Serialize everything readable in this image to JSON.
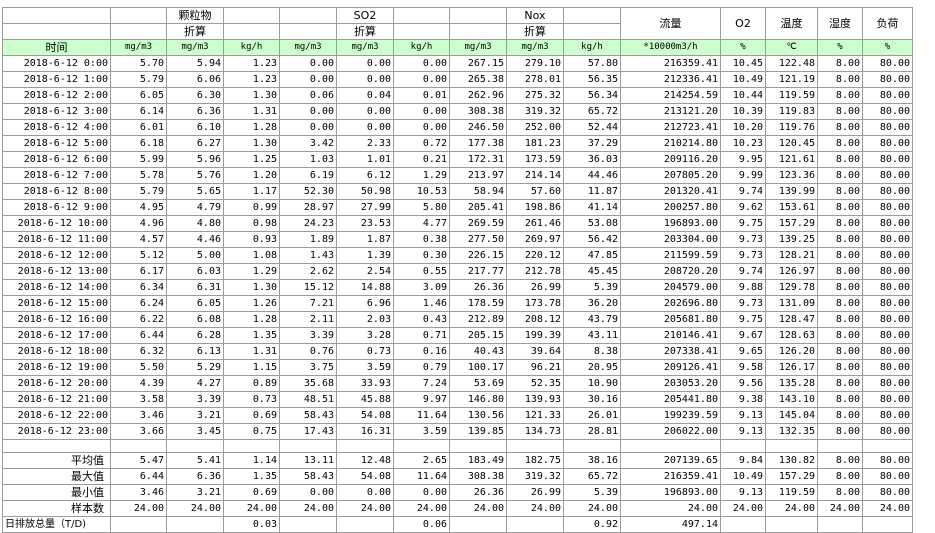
{
  "header": {
    "particle": "颗粒物",
    "so2": "SO2",
    "nox": "Nox",
    "converted": "折算",
    "flow": "流量",
    "o2": "O2",
    "temp": "温度",
    "humidity": "湿度",
    "load": "负荷",
    "time": "时间"
  },
  "units": [
    "mg/m3",
    "mg/m3",
    "kg/h",
    "mg/m3",
    "mg/m3",
    "kg/h",
    "mg/m3",
    "mg/m3",
    "kg/h",
    "*10000m3/h",
    "%",
    "℃",
    "%",
    "%"
  ],
  "rows": [
    [
      "2018-6-12 0:00",
      "5.70",
      "5.94",
      "1.23",
      "0.00",
      "0.00",
      "0.00",
      "267.15",
      "279.10",
      "57.80",
      "216359.41",
      "10.45",
      "122.48",
      "8.00",
      "80.00"
    ],
    [
      "2018-6-12 1:00",
      "5.79",
      "6.06",
      "1.23",
      "0.00",
      "0.00",
      "0.00",
      "265.38",
      "278.01",
      "56.35",
      "212336.41",
      "10.49",
      "121.19",
      "8.00",
      "80.00"
    ],
    [
      "2018-6-12 2:00",
      "6.05",
      "6.30",
      "1.30",
      "0.06",
      "0.04",
      "0.01",
      "262.96",
      "275.32",
      "56.34",
      "214254.59",
      "10.44",
      "119.59",
      "8.00",
      "80.00"
    ],
    [
      "2018-6-12 3:00",
      "6.14",
      "6.36",
      "1.31",
      "0.00",
      "0.00",
      "0.00",
      "308.38",
      "319.32",
      "65.72",
      "213121.20",
      "10.39",
      "119.83",
      "8.00",
      "80.00"
    ],
    [
      "2018-6-12 4:00",
      "6.01",
      "6.10",
      "1.28",
      "0.00",
      "0.00",
      "0.00",
      "246.50",
      "252.00",
      "52.44",
      "212723.41",
      "10.20",
      "119.76",
      "8.00",
      "80.00"
    ],
    [
      "2018-6-12 5:00",
      "6.18",
      "6.27",
      "1.30",
      "3.42",
      "2.33",
      "0.72",
      "177.38",
      "181.23",
      "37.29",
      "210214.80",
      "10.23",
      "120.45",
      "8.00",
      "80.00"
    ],
    [
      "2018-6-12 6:00",
      "5.99",
      "5.96",
      "1.25",
      "1.03",
      "1.01",
      "0.21",
      "172.31",
      "173.59",
      "36.03",
      "209116.20",
      "9.95",
      "121.61",
      "8.00",
      "80.00"
    ],
    [
      "2018-6-12 7:00",
      "5.78",
      "5.76",
      "1.20",
      "6.19",
      "6.12",
      "1.29",
      "213.97",
      "214.14",
      "44.46",
      "207805.20",
      "9.99",
      "123.36",
      "8.00",
      "80.00"
    ],
    [
      "2018-6-12 8:00",
      "5.79",
      "5.65",
      "1.17",
      "52.30",
      "50.98",
      "10.53",
      "58.94",
      "57.60",
      "11.87",
      "201320.41",
      "9.74",
      "139.99",
      "8.00",
      "80.00"
    ],
    [
      "2018-6-12 9:00",
      "4.95",
      "4.79",
      "0.99",
      "28.97",
      "27.99",
      "5.80",
      "205.41",
      "198.86",
      "41.14",
      "200257.80",
      "9.62",
      "153.61",
      "8.00",
      "80.00"
    ],
    [
      "2018-6-12 10:00",
      "4.96",
      "4.80",
      "0.98",
      "24.23",
      "23.53",
      "4.77",
      "269.59",
      "261.46",
      "53.08",
      "196893.00",
      "9.75",
      "157.29",
      "8.00",
      "80.00"
    ],
    [
      "2018-6-12 11:00",
      "4.57",
      "4.46",
      "0.93",
      "1.89",
      "1.87",
      "0.38",
      "277.50",
      "269.97",
      "56.42",
      "203304.00",
      "9.73",
      "139.25",
      "8.00",
      "80.00"
    ],
    [
      "2018-6-12 12:00",
      "5.12",
      "5.00",
      "1.08",
      "1.43",
      "1.39",
      "0.30",
      "226.15",
      "220.12",
      "47.85",
      "211599.59",
      "9.73",
      "128.21",
      "8.00",
      "80.00"
    ],
    [
      "2018-6-12 13:00",
      "6.17",
      "6.03",
      "1.29",
      "2.62",
      "2.54",
      "0.55",
      "217.77",
      "212.78",
      "45.45",
      "208720.20",
      "9.74",
      "126.97",
      "8.00",
      "80.00"
    ],
    [
      "2018-6-12 14:00",
      "6.34",
      "6.31",
      "1.30",
      "15.12",
      "14.88",
      "3.09",
      "26.36",
      "26.99",
      "5.39",
      "204579.00",
      "9.88",
      "129.78",
      "8.00",
      "80.00"
    ],
    [
      "2018-6-12 15:00",
      "6.24",
      "6.05",
      "1.26",
      "7.21",
      "6.96",
      "1.46",
      "178.59",
      "173.78",
      "36.20",
      "202696.80",
      "9.73",
      "131.09",
      "8.00",
      "80.00"
    ],
    [
      "2018-6-12 16:00",
      "6.22",
      "6.08",
      "1.28",
      "2.11",
      "2.03",
      "0.43",
      "212.89",
      "208.12",
      "43.79",
      "205681.80",
      "9.75",
      "128.47",
      "8.00",
      "80.00"
    ],
    [
      "2018-6-12 17:00",
      "6.44",
      "6.28",
      "1.35",
      "3.39",
      "3.28",
      "0.71",
      "205.15",
      "199.39",
      "43.11",
      "210146.41",
      "9.67",
      "128.63",
      "8.00",
      "80.00"
    ],
    [
      "2018-6-12 18:00",
      "6.32",
      "6.13",
      "1.31",
      "0.76",
      "0.73",
      "0.16",
      "40.43",
      "39.64",
      "8.38",
      "207338.41",
      "9.65",
      "126.20",
      "8.00",
      "80.00"
    ],
    [
      "2018-6-12 19:00",
      "5.50",
      "5.29",
      "1.15",
      "3.75",
      "3.59",
      "0.79",
      "100.17",
      "96.21",
      "20.95",
      "209126.41",
      "9.58",
      "126.17",
      "8.00",
      "80.00"
    ],
    [
      "2018-6-12 20:00",
      "4.39",
      "4.27",
      "0.89",
      "35.68",
      "33.93",
      "7.24",
      "53.69",
      "52.35",
      "10.90",
      "203053.20",
      "9.56",
      "135.28",
      "8.00",
      "80.00"
    ],
    [
      "2018-6-12 21:00",
      "3.58",
      "3.39",
      "0.73",
      "48.51",
      "45.88",
      "9.97",
      "146.80",
      "139.93",
      "30.16",
      "205441.80",
      "9.38",
      "143.10",
      "8.00",
      "80.00"
    ],
    [
      "2018-6-12 22:00",
      "3.46",
      "3.21",
      "0.69",
      "58.43",
      "54.08",
      "11.64",
      "130.56",
      "121.33",
      "26.01",
      "199239.59",
      "9.13",
      "145.04",
      "8.00",
      "80.00"
    ],
    [
      "2018-6-12 23:00",
      "3.66",
      "3.45",
      "0.75",
      "17.43",
      "16.31",
      "3.59",
      "139.85",
      "134.73",
      "28.81",
      "206022.00",
      "9.13",
      "132.35",
      "8.00",
      "80.00"
    ]
  ],
  "stats": [
    [
      "平均值",
      "5.47",
      "5.41",
      "1.14",
      "13.11",
      "12.48",
      "2.65",
      "183.49",
      "182.75",
      "38.16",
      "207139.65",
      "9.84",
      "130.82",
      "8.00",
      "80.00"
    ],
    [
      "最大值",
      "6.44",
      "6.36",
      "1.35",
      "58.43",
      "54.08",
      "11.64",
      "308.38",
      "319.32",
      "65.72",
      "216359.41",
      "10.49",
      "157.29",
      "8.00",
      "80.00"
    ],
    [
      "最小值",
      "3.46",
      "3.21",
      "0.69",
      "0.00",
      "0.00",
      "0.00",
      "26.36",
      "26.99",
      "5.39",
      "196893.00",
      "9.13",
      "119.59",
      "8.00",
      "80.00"
    ],
    [
      "样本数",
      "24.00",
      "24.00",
      "24.00",
      "24.00",
      "24.00",
      "24.00",
      "24.00",
      "24.00",
      "24.00",
      "24.00",
      "24.00",
      "24.00",
      "24.00",
      "24.00"
    ]
  ],
  "totals": {
    "label": "日排放总量（T/D)",
    "particle": "0.03",
    "so2": "0.06",
    "nox": "0.92",
    "flow": "497.14"
  }
}
